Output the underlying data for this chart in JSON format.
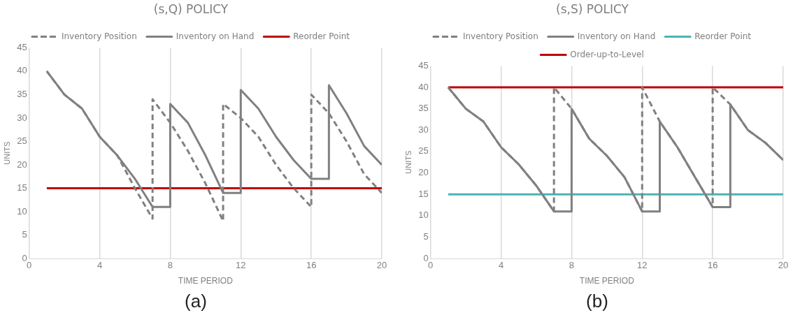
{
  "chart_data": [
    {
      "type": "line",
      "title": "(s,Q) POLICY",
      "xlabel": "TIME PERIOD",
      "ylabel": "UNITS",
      "xlim": [
        0,
        20
      ],
      "xticks": [
        0,
        4,
        8,
        12,
        16,
        20
      ],
      "ylim": [
        0,
        45
      ],
      "yticks": [
        0,
        5,
        10,
        15,
        20,
        25,
        30,
        35,
        40,
        45
      ],
      "grid": "x",
      "legend": "top",
      "marker": "none",
      "annotations": [
        "(a)"
      ],
      "series": [
        {
          "name": "Inventory Position",
          "color": "#808080",
          "line_style": "dashed",
          "x": [
            1,
            2,
            3,
            4,
            5,
            6,
            7,
            7,
            8,
            9,
            10,
            11,
            11,
            12,
            13,
            14,
            15,
            16,
            16,
            17,
            18,
            19,
            20
          ],
          "values": [
            40,
            35,
            32,
            26,
            22,
            15,
            8.5,
            34,
            29,
            23,
            16,
            8,
            33,
            30,
            26,
            20,
            15,
            11,
            35,
            31,
            25,
            18,
            14
          ]
        },
        {
          "name": "Inventory on Hand",
          "color": "#808080",
          "line_style": "solid",
          "x": [
            1,
            2,
            3,
            4,
            5,
            6,
            7,
            8,
            8,
            9,
            10,
            11,
            12,
            12,
            13,
            14,
            15,
            16,
            17,
            17,
            18,
            19,
            20
          ],
          "values": [
            40,
            35,
            32,
            26,
            22,
            17,
            11,
            11,
            33,
            29,
            22,
            14,
            14,
            36,
            32,
            26,
            21,
            17,
            17,
            37,
            31,
            24,
            20
          ]
        },
        {
          "name": "Reorder Point",
          "color": "#c00000",
          "line_style": "solid",
          "x": [
            1,
            20
          ],
          "values": [
            15,
            15
          ]
        }
      ]
    },
    {
      "type": "line",
      "title": "(s,S) POLICY",
      "xlabel": "TIME PERIOD",
      "ylabel": "UNITS",
      "xlim": [
        0,
        20
      ],
      "xticks": [
        0,
        4,
        8,
        12,
        16,
        20
      ],
      "ylim": [
        0,
        45
      ],
      "yticks": [
        0,
        5,
        10,
        15,
        20,
        25,
        30,
        35,
        40,
        45
      ],
      "grid": "x",
      "legend": "top",
      "marker": "none",
      "annotations": [
        "(b)"
      ],
      "series": [
        {
          "name": "Inventory Position",
          "color": "#808080",
          "line_style": "dashed",
          "x": [
            1,
            2,
            3,
            4,
            5,
            6,
            7,
            7,
            8,
            9,
            10,
            11,
            12,
            12,
            13,
            14,
            15,
            16,
            16,
            17,
            18,
            19,
            20
          ],
          "values": [
            40,
            35,
            32,
            26,
            22,
            17,
            11,
            40,
            35,
            28,
            24,
            19,
            11,
            40,
            32,
            26,
            19,
            12,
            40,
            36,
            30,
            27,
            23
          ]
        },
        {
          "name": "Inventory on Hand",
          "color": "#808080",
          "line_style": "solid",
          "x": [
            1,
            2,
            3,
            4,
            5,
            6,
            7,
            8,
            8,
            9,
            10,
            11,
            12,
            13,
            13,
            14,
            15,
            16,
            17,
            17,
            18,
            19,
            20
          ],
          "values": [
            40,
            35,
            32,
            26,
            22,
            17,
            11,
            11,
            35,
            28,
            24,
            19,
            11,
            11,
            32,
            26,
            19,
            12,
            12,
            36,
            30,
            27,
            23
          ]
        },
        {
          "name": "Reorder Point",
          "color": "#4bb3b3",
          "line_style": "solid",
          "x": [
            1,
            20
          ],
          "values": [
            15,
            15
          ]
        },
        {
          "name": "Order-up-to-Level",
          "color": "#c00000",
          "line_style": "solid",
          "x": [
            1,
            20
          ],
          "values": [
            40,
            40
          ]
        }
      ]
    }
  ]
}
